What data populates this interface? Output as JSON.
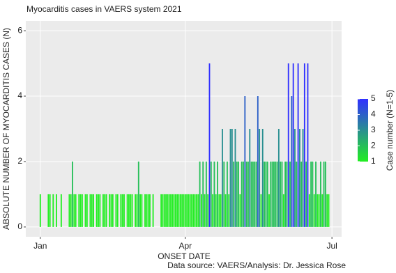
{
  "chart_data": {
    "type": "bar",
    "title": "Myocarditis cases in VAERS system 2021",
    "x_label": "ONSET DATE",
    "y_label": "ABSOLUTE NUMBER OF MYOCARDITIS CASES (N)",
    "caption": "Data source: VAERS/Analysis: Dr. Jessica Rose",
    "x": [
      1,
      2,
      3,
      4,
      5,
      6,
      7,
      8,
      9,
      10,
      11,
      12,
      13,
      14,
      15,
      16,
      17,
      18,
      19,
      20,
      21,
      22,
      23,
      24,
      25,
      26,
      27,
      28,
      29,
      30,
      31,
      32,
      33,
      34,
      35,
      36,
      37,
      38,
      39,
      40,
      41,
      42,
      43,
      44,
      45,
      46,
      47,
      48,
      49,
      50,
      51,
      52,
      53,
      54,
      55,
      56,
      57,
      58,
      59,
      60,
      61,
      62,
      63,
      64,
      65,
      66,
      67,
      68,
      69,
      70,
      71,
      72,
      73,
      74,
      75,
      76,
      77,
      78,
      79,
      80,
      81,
      82,
      83,
      84,
      85,
      86,
      87,
      88,
      89,
      90,
      91,
      92,
      93,
      94,
      95,
      96,
      97,
      98,
      99,
      100,
      101,
      102,
      103,
      104,
      105,
      106,
      107,
      108,
      109,
      110,
      111,
      112,
      113,
      114,
      115,
      116,
      117,
      118,
      119,
      120,
      121,
      122,
      123,
      124,
      125,
      126,
      127,
      128,
      129,
      130,
      131,
      132,
      133,
      134,
      135,
      136,
      137,
      138,
      139,
      140,
      141,
      142,
      143,
      144,
      145,
      146,
      147,
      148,
      149,
      150,
      151,
      152,
      153,
      154,
      155,
      156,
      157,
      158,
      159,
      160,
      161,
      162,
      163,
      164,
      165,
      166,
      167,
      168,
      169,
      170,
      171,
      172,
      173,
      174,
      175,
      176,
      177,
      178,
      179,
      180,
      181
    ],
    "values": [
      1,
      0,
      0,
      0,
      0,
      1,
      1,
      0,
      1,
      0,
      1,
      0,
      0,
      1,
      0,
      0,
      0,
      0,
      1,
      1,
      2,
      1,
      1,
      0,
      1,
      1,
      1,
      0,
      1,
      1,
      0,
      1,
      1,
      1,
      0,
      1,
      1,
      1,
      0,
      1,
      1,
      1,
      0,
      1,
      1,
      1,
      0,
      1,
      1,
      0,
      1,
      1,
      1,
      0,
      1,
      1,
      1,
      1,
      0,
      1,
      1,
      2,
      1,
      1,
      0,
      1,
      1,
      1,
      1,
      0,
      1,
      0,
      0,
      0,
      0,
      1,
      1,
      1,
      1,
      1,
      1,
      1,
      1,
      1,
      1,
      1,
      1,
      1,
      1,
      1,
      1,
      1,
      1,
      1,
      1,
      1,
      1,
      1,
      1,
      2,
      1,
      2,
      1,
      2,
      1,
      5,
      2,
      1,
      2,
      1,
      2,
      1,
      1,
      3,
      2,
      1,
      2,
      1,
      3,
      3,
      2,
      3,
      2,
      2,
      1,
      2,
      2,
      4,
      2,
      2,
      3,
      2,
      2,
      2,
      2,
      4,
      3,
      1,
      3,
      2,
      2,
      2,
      1,
      2,
      2,
      2,
      2,
      2,
      3,
      2,
      2,
      1,
      2,
      2,
      5,
      2,
      4,
      5,
      3,
      2,
      5,
      3,
      2,
      3,
      5,
      2,
      5,
      1,
      2,
      2,
      1,
      2,
      1,
      1,
      2,
      1,
      2,
      2,
      1,
      1,
      0
    ],
    "xlim": [
      -8,
      188
    ],
    "xticks": [
      {
        "value": 1,
        "label": "Jan"
      },
      {
        "value": 91,
        "label": "Apr"
      },
      {
        "value": 182,
        "label": "Jul"
      }
    ],
    "ylim": [
      -0.3,
      6.3
    ],
    "yticks": [
      0,
      2,
      4,
      6
    ],
    "grid": true,
    "colorbar": {
      "title": "Case number (N=1-5)",
      "lim": [
        1,
        5
      ],
      "ticks": [
        1,
        2,
        3,
        4,
        5
      ],
      "low_color": "#22ee22",
      "high_color": "#3030ff"
    }
  }
}
